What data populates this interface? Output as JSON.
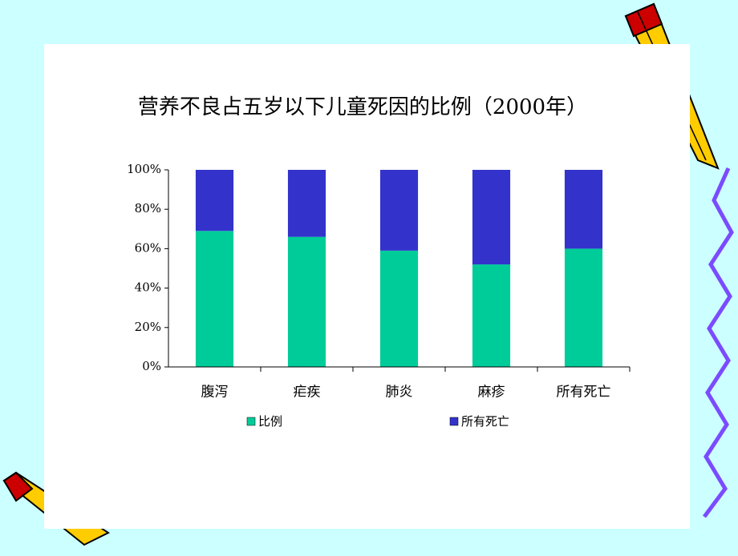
{
  "chart_data": {
    "type": "stacked_bar",
    "title": "营养不良占五岁以下儿童死因的比例（2000年）",
    "categories": [
      "腹泻",
      "疟疾",
      "肺炎",
      "麻疹",
      "所有死亡"
    ],
    "series": [
      {
        "name": "比例",
        "color": "#00cc99",
        "values": [
          69,
          66,
          59,
          52,
          60
        ]
      },
      {
        "name": "所有死亡",
        "color": "#3333cc",
        "values": [
          31,
          34,
          41,
          48,
          40
        ]
      }
    ],
    "ylim": [
      0,
      100
    ],
    "yticks": [
      {
        "value": 0,
        "label": "0%"
      },
      {
        "value": 20,
        "label": "20%"
      },
      {
        "value": 40,
        "label": "40%"
      },
      {
        "value": 60,
        "label": "60%"
      },
      {
        "value": 80,
        "label": "80%"
      },
      {
        "value": 100,
        "label": "100%"
      }
    ],
    "legend": "bottom"
  }
}
